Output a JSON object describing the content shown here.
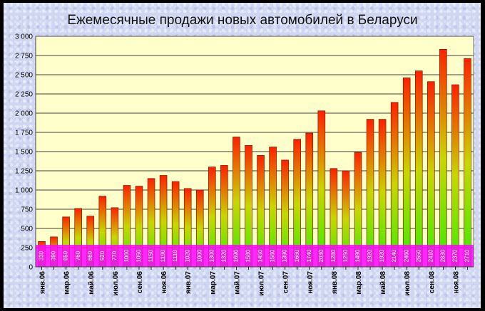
{
  "chart_data": {
    "type": "bar",
    "title": "Ежемесячные продажи новых автомобилей в Беларуси",
    "xlabel": "",
    "ylabel": "",
    "ylim": [
      0,
      3000
    ],
    "yticks": [
      0,
      250,
      500,
      750,
      1000,
      1250,
      1500,
      1750,
      2000,
      2250,
      2500,
      2750,
      3000
    ],
    "ytick_labels": [
      "0",
      "250",
      "500",
      "750",
      "1 000",
      "1 250",
      "1 500",
      "1 750",
      "2 000",
      "2 250",
      "2 500",
      "2 750",
      "3 000"
    ],
    "grid": true,
    "legend": "none",
    "categories": [
      "янв.06",
      "фев.06",
      "мар.06",
      "апр.06",
      "май.06",
      "июн.06",
      "июл.06",
      "авг.06",
      "сен.06",
      "окт.06",
      "ноя.06",
      "дек.06",
      "янв.07",
      "фев.07",
      "мар.07",
      "апр.07",
      "май.07",
      "июн.07",
      "июл.07",
      "авг.07",
      "сен.07",
      "окт.07",
      "ноя.07",
      "дек.07",
      "янв.08",
      "фев.08",
      "мар.08",
      "апр.08",
      "май.08",
      "июн.08",
      "июл.08",
      "авг.08",
      "сен.08",
      "окт.08",
      "ноя.08",
      "дек.08"
    ],
    "shown_x_labels": [
      "янв.06",
      "мар.06",
      "май.06",
      "июл.06",
      "сен.06",
      "ноя.06",
      "янв.07",
      "мар.07",
      "май.07",
      "июл.07",
      "сен.07",
      "ноя.07",
      "янв.08",
      "мар.08",
      "май.08",
      "июл.08",
      "сен.08",
      "ноя.08"
    ],
    "values": [
      330,
      390,
      650,
      760,
      660,
      920,
      770,
      1060,
      1050,
      1150,
      1190,
      1110,
      1020,
      1000,
      1300,
      1320,
      1690,
      1580,
      1450,
      1560,
      1390,
      1660,
      1740,
      2030,
      1280,
      1250,
      1490,
      1920,
      1920,
      2140,
      2460,
      2550,
      2410,
      2830,
      2370,
      2710
    ],
    "colors": {
      "bar_top": "#ff2000",
      "bar_mid": "#c9d600",
      "bar_bottom": "#33ee00",
      "label_band": "#ff00ff",
      "plot_bg": "#ffffcc"
    }
  }
}
